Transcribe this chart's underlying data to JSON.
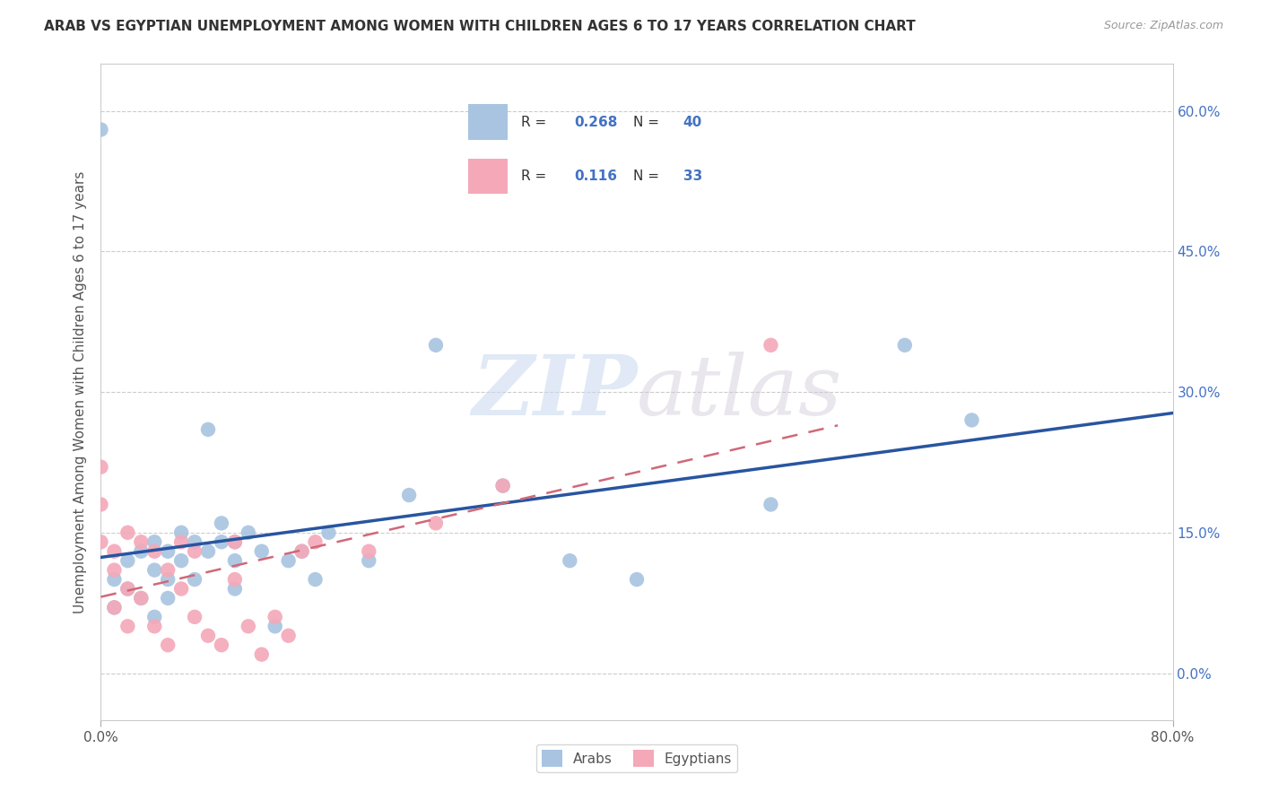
{
  "title": "ARAB VS EGYPTIAN UNEMPLOYMENT AMONG WOMEN WITH CHILDREN AGES 6 TO 17 YEARS CORRELATION CHART",
  "source": "Source: ZipAtlas.com",
  "ylabel": "Unemployment Among Women with Children Ages 6 to 17 years",
  "ytick_labels": [
    "60.0%",
    "45.0%",
    "30.0%",
    "15.0%",
    "0.0%"
  ],
  "ytick_values": [
    0.6,
    0.45,
    0.3,
    0.15,
    0.0
  ],
  "xlim": [
    0.0,
    0.8
  ],
  "ylim": [
    -0.05,
    0.65
  ],
  "legend_arab_R": "0.268",
  "legend_arab_N": "40",
  "legend_egypt_R": "0.116",
  "legend_egypt_N": "33",
  "arab_color": "#a8c4e0",
  "egypt_color": "#f4a8b8",
  "arab_line_color": "#2855a0",
  "egypt_line_color": "#d06878",
  "watermark_zip": "ZIP",
  "watermark_atlas": "atlas",
  "arab_points_x": [
    0.0,
    0.01,
    0.01,
    0.02,
    0.02,
    0.03,
    0.03,
    0.04,
    0.04,
    0.04,
    0.05,
    0.05,
    0.05,
    0.06,
    0.06,
    0.07,
    0.07,
    0.08,
    0.08,
    0.09,
    0.09,
    0.1,
    0.1,
    0.1,
    0.11,
    0.12,
    0.13,
    0.14,
    0.15,
    0.16,
    0.17,
    0.2,
    0.23,
    0.25,
    0.3,
    0.35,
    0.4,
    0.5,
    0.6,
    0.65
  ],
  "arab_points_y": [
    0.58,
    0.1,
    0.07,
    0.12,
    0.09,
    0.13,
    0.08,
    0.14,
    0.11,
    0.06,
    0.13,
    0.1,
    0.08,
    0.15,
    0.12,
    0.14,
    0.1,
    0.26,
    0.13,
    0.16,
    0.14,
    0.12,
    0.14,
    0.09,
    0.15,
    0.13,
    0.05,
    0.12,
    0.13,
    0.1,
    0.15,
    0.12,
    0.19,
    0.35,
    0.2,
    0.12,
    0.1,
    0.18,
    0.35,
    0.27
  ],
  "egypt_points_x": [
    0.0,
    0.0,
    0.0,
    0.01,
    0.01,
    0.01,
    0.02,
    0.02,
    0.02,
    0.03,
    0.03,
    0.04,
    0.04,
    0.05,
    0.05,
    0.06,
    0.06,
    0.07,
    0.07,
    0.08,
    0.09,
    0.1,
    0.1,
    0.11,
    0.12,
    0.13,
    0.14,
    0.15,
    0.16,
    0.2,
    0.25,
    0.3,
    0.5
  ],
  "egypt_points_y": [
    0.22,
    0.18,
    0.14,
    0.13,
    0.11,
    0.07,
    0.15,
    0.09,
    0.05,
    0.14,
    0.08,
    0.13,
    0.05,
    0.11,
    0.03,
    0.14,
    0.09,
    0.13,
    0.06,
    0.04,
    0.03,
    0.14,
    0.1,
    0.05,
    0.02,
    0.06,
    0.04,
    0.13,
    0.14,
    0.13,
    0.16,
    0.2,
    0.35
  ]
}
